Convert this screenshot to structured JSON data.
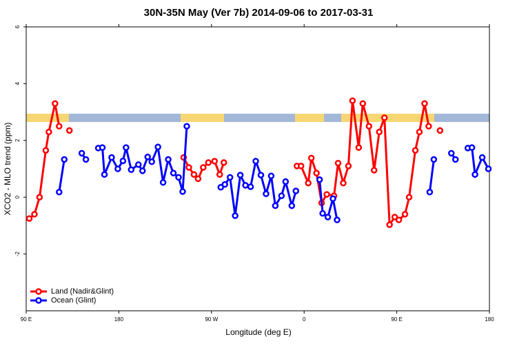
{
  "chart_data": {
    "type": "line",
    "title": "30N-35N May (Ver 7b)   2014-09-06 to 2017-03-31",
    "x_label": "Longitude (deg E)",
    "y_label": "XCO2 - MLO trend (ppm)",
    "xlim": [
      90,
      540
    ],
    "ylim": [
      -4,
      6
    ],
    "xticks": [
      {
        "value": 90,
        "label": "90 E"
      },
      {
        "value": 180,
        "label": "180"
      },
      {
        "value": 270,
        "label": "90 W"
      },
      {
        "value": 360,
        "label": "0"
      },
      {
        "value": 450,
        "label": "90 E"
      },
      {
        "value": 540,
        "label": "180"
      }
    ],
    "yticks": [
      -2,
      0,
      2,
      4,
      6
    ],
    "legend": "bottom-left",
    "series": [
      {
        "name": "Land (Nadir&Glint)",
        "color": "#ff0000",
        "x": [
          93,
          98,
          103,
          109,
          112,
          118,
          122,
          127,
          132,
          185,
          243,
          248,
          253,
          257,
          262,
          267,
          273,
          278,
          282,
          319,
          353,
          357,
          364,
          367,
          372,
          377,
          382,
          389,
          393,
          398,
          403,
          407,
          413,
          417,
          423,
          428,
          433,
          438,
          443,
          448,
          452,
          458,
          462,
          468,
          472,
          477,
          481,
          486,
          492
        ],
        "values": [
          -0.75,
          -0.6,
          0,
          1.65,
          2.3,
          3.3,
          2.5,
          null,
          2.35,
          null,
          1.4,
          1.05,
          0.8,
          0.65,
          1.05,
          1.22,
          1.27,
          0.8,
          1.22,
          null,
          1.1,
          1.1,
          0.5,
          1.38,
          0.85,
          -0.2,
          0.1,
          0.05,
          1.2,
          0.5,
          1.1,
          3.4,
          1.75,
          3.3,
          2.5,
          0.95,
          2.3,
          2.8,
          -0.97,
          -0.7,
          -0.8,
          -0.6,
          0,
          1.65,
          2.3,
          3.3,
          2.5,
          null,
          2.35
        ]
      },
      {
        "name": "Ocean (Glint)",
        "color": "#0000ff",
        "x": [
          122,
          127,
          136,
          144,
          148,
          154,
          160,
          164,
          166,
          173,
          179,
          184,
          187,
          192,
          199,
          203,
          208,
          212,
          218,
          223,
          228,
          233,
          238,
          242,
          246,
          262,
          279,
          283,
          288,
          293,
          298,
          303,
          308,
          313,
          318,
          323,
          328,
          332,
          338,
          342,
          348,
          352,
          363,
          375,
          378,
          383,
          388,
          392,
          437,
          482,
          486,
          495,
          503,
          507,
          513,
          519,
          523,
          526,
          533,
          539
        ],
        "values": [
          0.18,
          1.33,
          null,
          1.55,
          1.33,
          null,
          1.73,
          1.75,
          0.8,
          1.4,
          1.0,
          1.28,
          1.75,
          0.97,
          1.15,
          0.93,
          1.42,
          1.25,
          1.77,
          0.52,
          1.33,
          0.85,
          0.7,
          0.2,
          2.5,
          null,
          0.35,
          0.45,
          0.7,
          -0.65,
          0.78,
          0.42,
          0.37,
          1.27,
          0.78,
          0.12,
          0.75,
          -0.3,
          0.05,
          0.55,
          -0.3,
          0.22,
          null,
          0.62,
          -0.57,
          -0.7,
          -0.05,
          -0.8,
          null,
          0.18,
          1.33,
          null,
          1.55,
          1.33,
          null,
          1.73,
          1.75,
          0.8,
          1.4,
          1.0
        ]
      }
    ]
  }
}
